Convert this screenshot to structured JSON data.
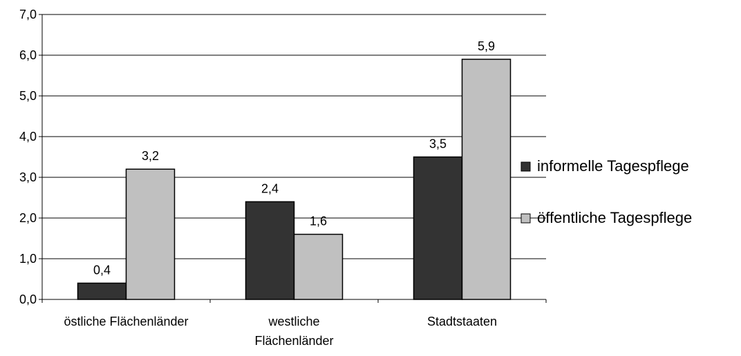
{
  "chart_data": {
    "type": "bar",
    "categories": [
      "östliche Flächenländer",
      "westliche Flächenländer",
      "Stadtstaaten"
    ],
    "category_lines": [
      [
        "östliche Flächenländer"
      ],
      [
        "westliche",
        "Flächenländer"
      ],
      [
        "Stadtstaaten"
      ]
    ],
    "series": [
      {
        "name": "informelle Tagespflege",
        "values": [
          0.4,
          2.4,
          3.5
        ],
        "labels": [
          "0,4",
          "2,4",
          "3,5"
        ],
        "color": "#333333"
      },
      {
        "name": "öffentliche Tagespflege",
        "values": [
          3.2,
          1.6,
          5.9
        ],
        "labels": [
          "3,2",
          "1,6",
          "5,9"
        ],
        "color": "#c0c0c0"
      }
    ],
    "yticks": [
      {
        "value": 0,
        "label": "0,0"
      },
      {
        "value": 1,
        "label": "1,0"
      },
      {
        "value": 2,
        "label": "2,0"
      },
      {
        "value": 3,
        "label": "3,0"
      },
      {
        "value": 4,
        "label": "4,0"
      },
      {
        "value": 5,
        "label": "5,0"
      },
      {
        "value": 6,
        "label": "6,0"
      },
      {
        "value": 7,
        "label": "7,0"
      }
    ],
    "ylim": [
      0,
      7
    ],
    "grid": true,
    "legend_position": "right"
  }
}
